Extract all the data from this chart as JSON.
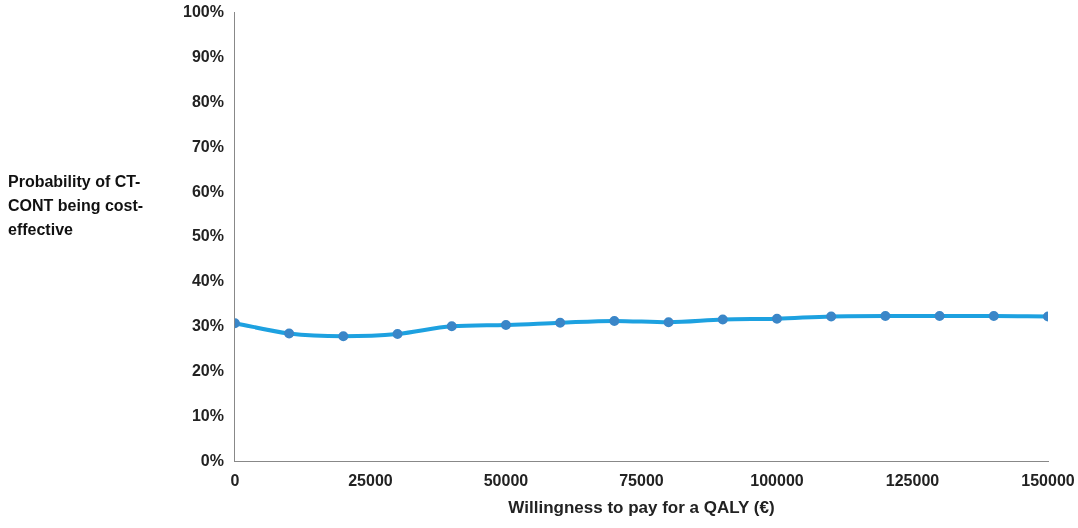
{
  "chart_data": {
    "type": "line",
    "xlabel": "Willingness to pay for a QALY (€)",
    "ylabel": "Probability of CT-CONT being cost-effective",
    "x": [
      0,
      10000,
      20000,
      30000,
      40000,
      50000,
      60000,
      70000,
      80000,
      90000,
      100000,
      110000,
      120000,
      130000,
      140000,
      150000
    ],
    "series": [
      {
        "color": "#1da1e0",
        "values": [
          30.8,
          28.5,
          27.9,
          28.4,
          30.1,
          30.4,
          30.9,
          31.3,
          31.0,
          31.6,
          31.8,
          32.3,
          32.4,
          32.4,
          32.4,
          32.3
        ]
      }
    ],
    "xlim": [
      0,
      150000
    ],
    "xticks": [
      0,
      25000,
      50000,
      75000,
      100000,
      125000,
      150000
    ],
    "ylim": [
      0,
      100
    ],
    "yticks": [
      {
        "value": 0,
        "label": "0%"
      },
      {
        "value": 10,
        "label": "10%"
      },
      {
        "value": 20,
        "label": "20%"
      },
      {
        "value": 30,
        "label": "30%"
      },
      {
        "value": 40,
        "label": "40%"
      },
      {
        "value": 50,
        "label": "50%"
      },
      {
        "value": 60,
        "label": "60%"
      },
      {
        "value": 70,
        "label": "70%"
      },
      {
        "value": 80,
        "label": "80%"
      },
      {
        "value": 90,
        "label": "90%"
      },
      {
        "value": 100,
        "label": "100%"
      }
    ],
    "grid": false,
    "legend": false,
    "marker": "circle",
    "line_style": "solid"
  }
}
